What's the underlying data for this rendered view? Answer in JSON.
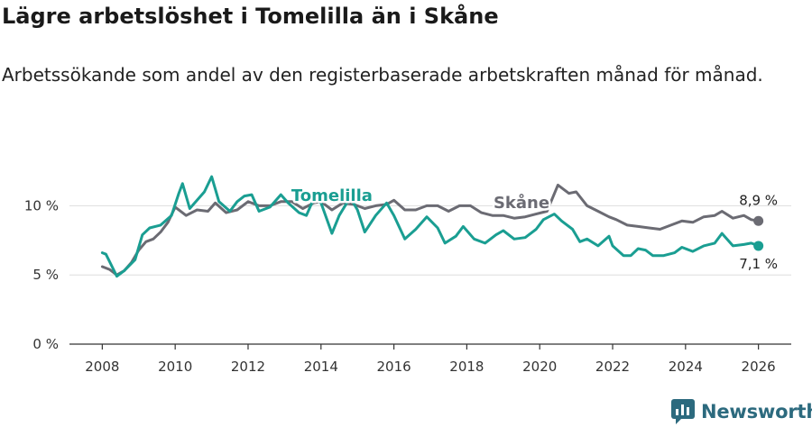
{
  "header": {
    "title": "Lägre arbetslöshet i Tomelilla än i Skåne",
    "subtitle": "Arbetssökande som andel av den registerbaserade arbetskraften månad för månad."
  },
  "brand": {
    "name": "Newsworthy",
    "color": "#2c6a7e"
  },
  "chart_data": {
    "type": "line",
    "title": "Lägre arbetslöshet i Tomelilla än i Skåne",
    "subtitle": "Arbetssökande som andel av den registerbaserade arbetskraften månad för månad.",
    "xlabel": "",
    "ylabel": "",
    "x_ticks": [
      2008,
      2010,
      2012,
      2014,
      2016,
      2018,
      2020,
      2022,
      2024,
      2026
    ],
    "y_ticks": [
      0,
      5,
      10
    ],
    "y_tick_labels": [
      "0 %",
      "5 %",
      "10 %"
    ],
    "xlim": [
      2007.1,
      2026.9
    ],
    "ylim": [
      0,
      12.5
    ],
    "grid": "horizontal",
    "series": [
      {
        "name": "Skåne",
        "label": "Skåne",
        "color": "#6b6b73",
        "end_label": "8,9 %",
        "points": [
          [
            2008.0,
            5.6
          ],
          [
            2008.2,
            5.4
          ],
          [
            2008.4,
            5.0
          ],
          [
            2008.6,
            5.3
          ],
          [
            2008.8,
            5.9
          ],
          [
            2009.0,
            6.8
          ],
          [
            2009.2,
            7.4
          ],
          [
            2009.4,
            7.6
          ],
          [
            2009.6,
            8.1
          ],
          [
            2009.8,
            8.8
          ],
          [
            2010.0,
            9.9
          ],
          [
            2010.3,
            9.3
          ],
          [
            2010.6,
            9.7
          ],
          [
            2010.9,
            9.6
          ],
          [
            2011.1,
            10.2
          ],
          [
            2011.4,
            9.5
          ],
          [
            2011.7,
            9.7
          ],
          [
            2012.0,
            10.3
          ],
          [
            2012.3,
            10.0
          ],
          [
            2012.6,
            10.0
          ],
          [
            2012.9,
            10.3
          ],
          [
            2013.2,
            10.3
          ],
          [
            2013.5,
            9.8
          ],
          [
            2013.8,
            10.2
          ],
          [
            2014.0,
            10.3
          ],
          [
            2014.3,
            9.7
          ],
          [
            2014.6,
            10.2
          ],
          [
            2014.9,
            10.1
          ],
          [
            2015.2,
            9.8
          ],
          [
            2015.5,
            10.0
          ],
          [
            2015.8,
            10.1
          ],
          [
            2016.0,
            10.4
          ],
          [
            2016.3,
            9.7
          ],
          [
            2016.6,
            9.7
          ],
          [
            2016.9,
            10.0
          ],
          [
            2017.2,
            10.0
          ],
          [
            2017.5,
            9.6
          ],
          [
            2017.8,
            10.0
          ],
          [
            2018.1,
            10.0
          ],
          [
            2018.4,
            9.5
          ],
          [
            2018.7,
            9.3
          ],
          [
            2019.0,
            9.3
          ],
          [
            2019.3,
            9.1
          ],
          [
            2019.6,
            9.2
          ],
          [
            2019.9,
            9.4
          ],
          [
            2020.2,
            9.6
          ],
          [
            2020.5,
            11.5
          ],
          [
            2020.8,
            10.9
          ],
          [
            2021.0,
            11.0
          ],
          [
            2021.3,
            10.0
          ],
          [
            2021.6,
            9.6
          ],
          [
            2021.9,
            9.2
          ],
          [
            2022.1,
            9.0
          ],
          [
            2022.4,
            8.6
          ],
          [
            2022.7,
            8.5
          ],
          [
            2023.0,
            8.4
          ],
          [
            2023.3,
            8.3
          ],
          [
            2023.6,
            8.6
          ],
          [
            2023.9,
            8.9
          ],
          [
            2024.2,
            8.8
          ],
          [
            2024.5,
            9.2
          ],
          [
            2024.8,
            9.3
          ],
          [
            2025.0,
            9.6
          ],
          [
            2025.3,
            9.1
          ],
          [
            2025.6,
            9.3
          ],
          [
            2025.8,
            9.0
          ],
          [
            2026.0,
            8.9
          ]
        ]
      },
      {
        "name": "Tomelilla",
        "label": "Tomelilla",
        "color": "#1a9e92",
        "end_label": "7,1 %",
        "points": [
          [
            2008.0,
            6.6
          ],
          [
            2008.1,
            6.5
          ],
          [
            2008.4,
            4.9
          ],
          [
            2008.6,
            5.3
          ],
          [
            2008.9,
            6.1
          ],
          [
            2009.1,
            7.9
          ],
          [
            2009.3,
            8.4
          ],
          [
            2009.6,
            8.6
          ],
          [
            2009.9,
            9.3
          ],
          [
            2010.1,
            10.9
          ],
          [
            2010.2,
            11.6
          ],
          [
            2010.4,
            9.8
          ],
          [
            2010.6,
            10.4
          ],
          [
            2010.8,
            11.0
          ],
          [
            2011.0,
            12.1
          ],
          [
            2011.2,
            10.3
          ],
          [
            2011.5,
            9.6
          ],
          [
            2011.7,
            10.3
          ],
          [
            2011.9,
            10.7
          ],
          [
            2012.1,
            10.8
          ],
          [
            2012.3,
            9.6
          ],
          [
            2012.6,
            9.9
          ],
          [
            2012.9,
            10.8
          ],
          [
            2013.1,
            10.2
          ],
          [
            2013.4,
            9.5
          ],
          [
            2013.6,
            9.3
          ],
          [
            2013.8,
            10.5
          ],
          [
            2014.0,
            10.2
          ],
          [
            2014.3,
            8.0
          ],
          [
            2014.5,
            9.3
          ],
          [
            2014.8,
            10.6
          ],
          [
            2015.0,
            9.7
          ],
          [
            2015.2,
            8.1
          ],
          [
            2015.5,
            9.3
          ],
          [
            2015.8,
            10.2
          ],
          [
            2016.0,
            9.3
          ],
          [
            2016.3,
            7.6
          ],
          [
            2016.6,
            8.3
          ],
          [
            2016.9,
            9.2
          ],
          [
            2017.2,
            8.4
          ],
          [
            2017.4,
            7.3
          ],
          [
            2017.7,
            7.8
          ],
          [
            2017.9,
            8.5
          ],
          [
            2018.2,
            7.6
          ],
          [
            2018.5,
            7.3
          ],
          [
            2018.8,
            7.9
          ],
          [
            2019.0,
            8.2
          ],
          [
            2019.3,
            7.6
          ],
          [
            2019.6,
            7.7
          ],
          [
            2019.9,
            8.3
          ],
          [
            2020.1,
            9.0
          ],
          [
            2020.4,
            9.4
          ],
          [
            2020.6,
            8.9
          ],
          [
            2020.9,
            8.3
          ],
          [
            2021.1,
            7.4
          ],
          [
            2021.3,
            7.6
          ],
          [
            2021.6,
            7.1
          ],
          [
            2021.9,
            7.8
          ],
          [
            2022.0,
            7.1
          ],
          [
            2022.3,
            6.4
          ],
          [
            2022.5,
            6.4
          ],
          [
            2022.7,
            6.9
          ],
          [
            2022.9,
            6.8
          ],
          [
            2023.1,
            6.4
          ],
          [
            2023.4,
            6.4
          ],
          [
            2023.7,
            6.6
          ],
          [
            2023.9,
            7.0
          ],
          [
            2024.2,
            6.7
          ],
          [
            2024.5,
            7.1
          ],
          [
            2024.8,
            7.3
          ],
          [
            2025.0,
            8.0
          ],
          [
            2025.3,
            7.1
          ],
          [
            2025.6,
            7.2
          ],
          [
            2025.8,
            7.3
          ],
          [
            2026.0,
            7.1
          ]
        ]
      }
    ]
  }
}
